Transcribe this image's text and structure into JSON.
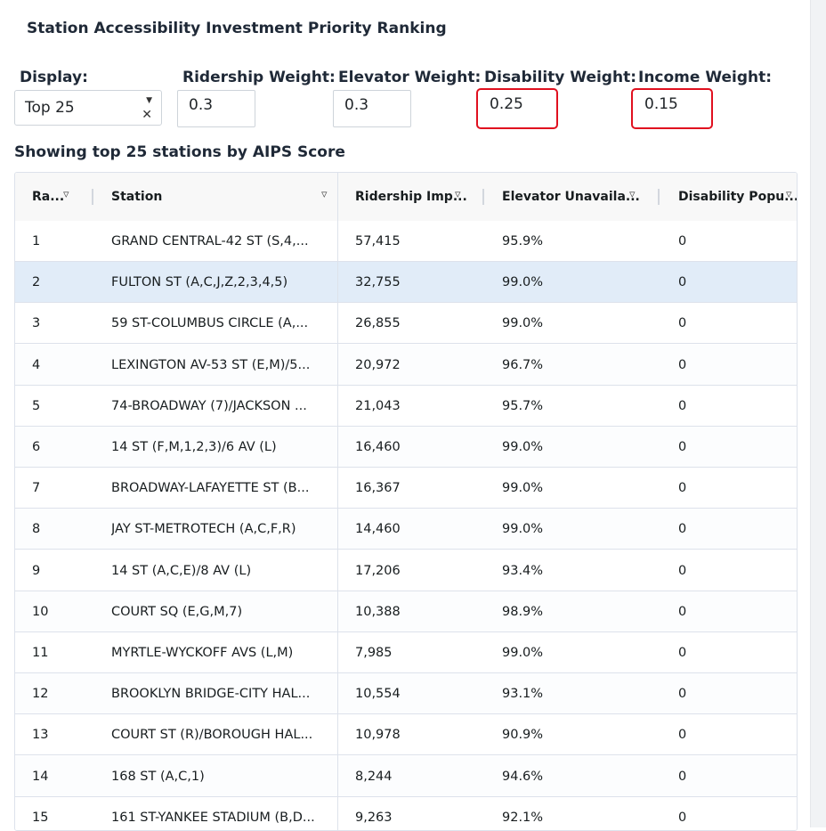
{
  "panel": {
    "title": "Station Accessibility Investment Priority Ranking"
  },
  "controls": {
    "display": {
      "label": "Display:",
      "value": "Top 25"
    },
    "ridership": {
      "label": "Ridership Weight:",
      "value": "0.3"
    },
    "elevator": {
      "label": "Elevator Weight:",
      "value": "0.3"
    },
    "disability": {
      "label": "Disability Weight:",
      "value": "0.25"
    },
    "income": {
      "label": "Income Weight:",
      "value": "0.15"
    }
  },
  "summary": "Showing top 25 stations by AIPS Score",
  "table": {
    "columns": [
      "Ra...",
      "Station",
      "Ridership Imp...",
      "Elevator Unavaila...",
      "Disability Popu..."
    ],
    "rows": [
      [
        "1",
        "GRAND CENTRAL-42 ST (S,4,...",
        "57,415",
        "95.9%",
        "0"
      ],
      [
        "2",
        "FULTON ST (A,C,J,Z,2,3,4,5)",
        "32,755",
        "99.0%",
        "0"
      ],
      [
        "3",
        "59 ST-COLUMBUS CIRCLE (A,...",
        "26,855",
        "99.0%",
        "0"
      ],
      [
        "4",
        "LEXINGTON AV-53 ST (E,M)/5...",
        "20,972",
        "96.7%",
        "0"
      ],
      [
        "5",
        "74-BROADWAY (7)/JACKSON ...",
        "21,043",
        "95.7%",
        "0"
      ],
      [
        "6",
        "14 ST (F,M,1,2,3)/6 AV (L)",
        "16,460",
        "99.0%",
        "0"
      ],
      [
        "7",
        "BROADWAY-LAFAYETTE ST (B...",
        "16,367",
        "99.0%",
        "0"
      ],
      [
        "8",
        "JAY ST-METROTECH (A,C,F,R)",
        "14,460",
        "99.0%",
        "0"
      ],
      [
        "9",
        "14 ST (A,C,E)/8 AV (L)",
        "17,206",
        "93.4%",
        "0"
      ],
      [
        "10",
        "COURT SQ (E,G,M,7)",
        "10,388",
        "98.9%",
        "0"
      ],
      [
        "11",
        "MYRTLE-WYCKOFF AVS (L,M)",
        "7,985",
        "99.0%",
        "0"
      ],
      [
        "12",
        "BROOKLYN BRIDGE-CITY HAL...",
        "10,554",
        "93.1%",
        "0"
      ],
      [
        "13",
        "COURT ST (R)/BOROUGH HAL...",
        "10,978",
        "90.9%",
        "0"
      ],
      [
        "14",
        "168 ST (A,C,1)",
        "8,244",
        "94.6%",
        "0"
      ],
      [
        "15",
        "161 ST-YANKEE STADIUM (B,D...",
        "9,263",
        "92.1%",
        "0"
      ]
    ],
    "selected_row": 1
  },
  "icons": {
    "filter": "filter-icon",
    "dropdown": "chevron-down-icon",
    "clear": "close-icon"
  }
}
